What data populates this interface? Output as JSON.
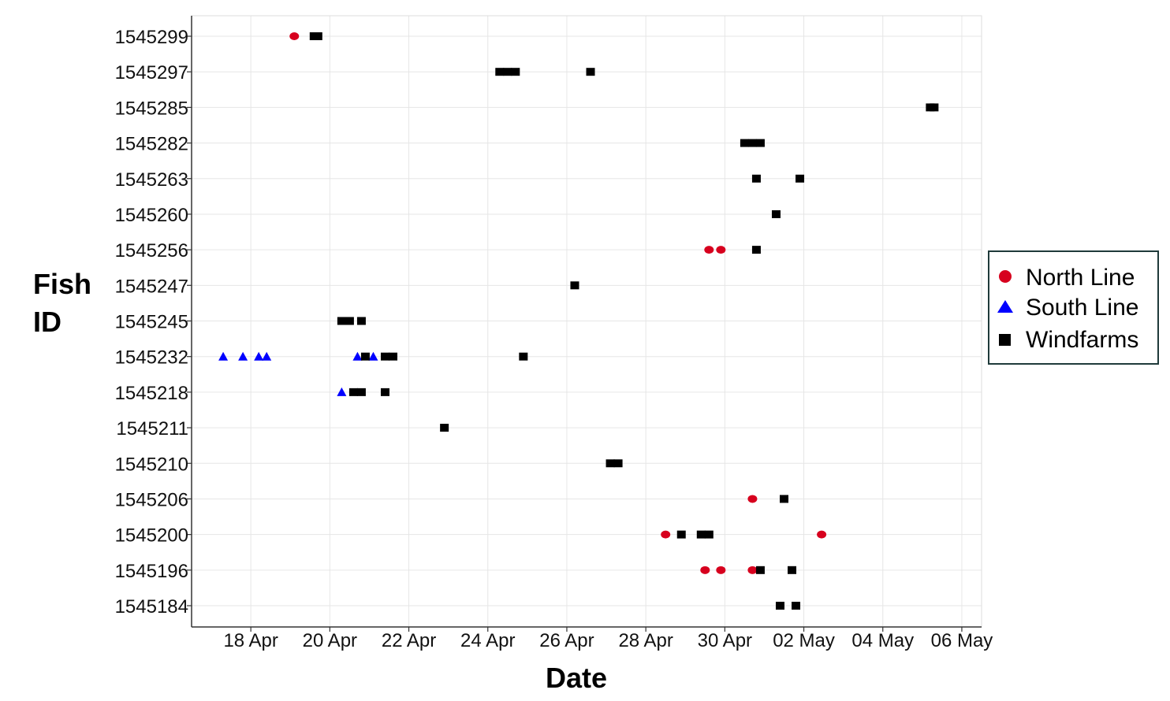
{
  "chart_data": {
    "type": "scatter",
    "title": "",
    "xlabel": "Date",
    "ylabel": [
      "Fish",
      "ID"
    ],
    "x_tick_labels": [
      "18 Apr",
      "20 Apr",
      "22 Apr",
      "24 Apr",
      "26 Apr",
      "28 Apr",
      "30 Apr",
      "02 May",
      "04 May",
      "06 May"
    ],
    "x_tick_dates": [
      "2000-04-18",
      "2000-04-20",
      "2000-04-22",
      "2000-04-24",
      "2000-04-26",
      "2000-04-28",
      "2000-04-30",
      "2000-05-02",
      "2000-05-04",
      "2000-05-06"
    ],
    "xlim": [
      "2000-04-16T12:00",
      "2000-05-06T12:00"
    ],
    "categories": [
      "1545184",
      "1545196",
      "1545200",
      "1545206",
      "1545210",
      "1545211",
      "1545218",
      "1545232",
      "1545245",
      "1545247",
      "1545256",
      "1545260",
      "1545263",
      "1545282",
      "1545285",
      "1545297",
      "1545299"
    ],
    "grid": true,
    "legend_position": "right",
    "series": [
      {
        "name": "North Line",
        "marker": "circle",
        "color": "#d7001e",
        "points": [
          {
            "x": "2000-04-19T02:24",
            "y": "1545299"
          },
          {
            "x": "2000-04-29T14:24",
            "y": "1545256"
          },
          {
            "x": "2000-04-29T21:36",
            "y": "1545256"
          },
          {
            "x": "2000-04-30T16:48",
            "y": "1545206"
          },
          {
            "x": "2000-04-28T12:00",
            "y": "1545200"
          },
          {
            "x": "2000-05-02T10:48",
            "y": "1545200"
          },
          {
            "x": "2000-04-29T12:00",
            "y": "1545196"
          },
          {
            "x": "2000-04-29T21:36",
            "y": "1545196"
          },
          {
            "x": "2000-04-30T16:48",
            "y": "1545196"
          }
        ]
      },
      {
        "name": "South Line",
        "marker": "triangle",
        "color": "#0000ff",
        "points": [
          {
            "x": "2000-04-17T07:12",
            "y": "1545232"
          },
          {
            "x": "2000-04-17T19:12",
            "y": "1545232"
          },
          {
            "x": "2000-04-18T04:48",
            "y": "1545232"
          },
          {
            "x": "2000-04-18T09:36",
            "y": "1545232"
          },
          {
            "x": "2000-04-20T16:48",
            "y": "1545232"
          },
          {
            "x": "2000-04-21T02:24",
            "y": "1545232"
          },
          {
            "x": "2000-04-20T07:12",
            "y": "1545218"
          }
        ]
      },
      {
        "name": "Windfarms",
        "marker": "square",
        "color": "#000000",
        "points": [
          {
            "x": "2000-04-19T14:24",
            "y": "1545299"
          },
          {
            "x": "2000-04-19T16:48",
            "y": "1545299"
          },
          {
            "x": "2000-04-24T07:12",
            "y": "1545297"
          },
          {
            "x": "2000-04-24T12:00",
            "y": "1545297"
          },
          {
            "x": "2000-04-24T16:48",
            "y": "1545297"
          },
          {
            "x": "2000-04-26T14:24",
            "y": "1545297"
          },
          {
            "x": "2000-05-05T04:48",
            "y": "1545285"
          },
          {
            "x": "2000-05-05T07:12",
            "y": "1545285"
          },
          {
            "x": "2000-04-30T12:00",
            "y": "1545282"
          },
          {
            "x": "2000-04-30T16:48",
            "y": "1545282"
          },
          {
            "x": "2000-04-30T21:36",
            "y": "1545282"
          },
          {
            "x": "2000-04-30T19:12",
            "y": "1545263"
          },
          {
            "x": "2000-05-01T21:36",
            "y": "1545263"
          },
          {
            "x": "2000-05-01T07:12",
            "y": "1545260"
          },
          {
            "x": "2000-04-30T19:12",
            "y": "1545256"
          },
          {
            "x": "2000-04-26T04:48",
            "y": "1545247"
          },
          {
            "x": "2000-04-20T07:12",
            "y": "1545245"
          },
          {
            "x": "2000-04-20T12:00",
            "y": "1545245"
          },
          {
            "x": "2000-04-20T19:12",
            "y": "1545245"
          },
          {
            "x": "2000-04-20T21:36",
            "y": "1545232"
          },
          {
            "x": "2000-04-21T09:36",
            "y": "1545232"
          },
          {
            "x": "2000-04-21T14:24",
            "y": "1545232"
          },
          {
            "x": "2000-04-24T21:36",
            "y": "1545232"
          },
          {
            "x": "2000-04-20T14:24",
            "y": "1545218"
          },
          {
            "x": "2000-04-20T19:12",
            "y": "1545218"
          },
          {
            "x": "2000-04-21T09:36",
            "y": "1545218"
          },
          {
            "x": "2000-04-22T21:36",
            "y": "1545211"
          },
          {
            "x": "2000-04-27T02:24",
            "y": "1545210"
          },
          {
            "x": "2000-04-27T07:12",
            "y": "1545210"
          },
          {
            "x": "2000-05-01T12:00",
            "y": "1545206"
          },
          {
            "x": "2000-04-28T21:36",
            "y": "1545200"
          },
          {
            "x": "2000-04-29T09:36",
            "y": "1545200"
          },
          {
            "x": "2000-04-29T14:24",
            "y": "1545200"
          },
          {
            "x": "2000-04-30T21:36",
            "y": "1545196"
          },
          {
            "x": "2000-05-01T16:48",
            "y": "1545196"
          },
          {
            "x": "2000-05-01T09:36",
            "y": "1545184"
          },
          {
            "x": "2000-05-01T19:12",
            "y": "1545184"
          }
        ]
      }
    ]
  }
}
